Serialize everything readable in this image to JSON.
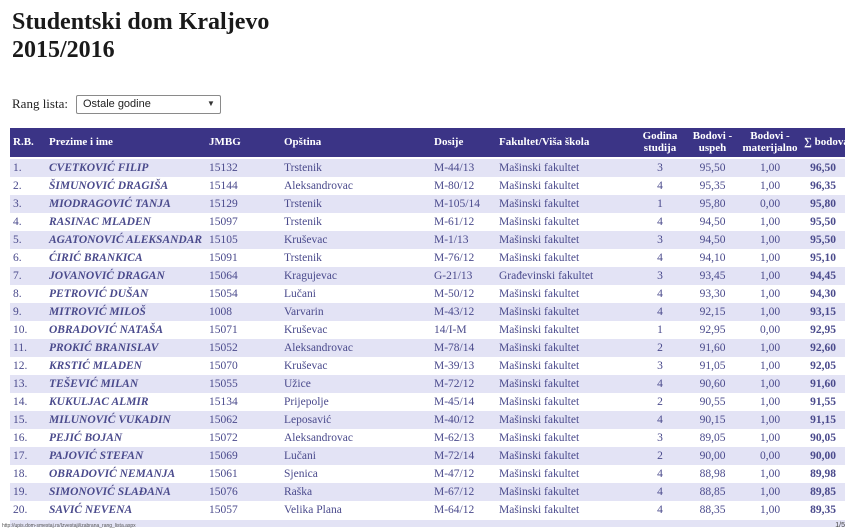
{
  "page": {
    "title": "Studentski dom Kraljevo",
    "subtitle": "2015/2016"
  },
  "filter": {
    "label": "Rang lista:",
    "selected_option": "Ostale godine",
    "dropdown_icon": "▼"
  },
  "table": {
    "columns": [
      "R.B.",
      "Prezime i ime",
      "JMBG",
      "Opština",
      "Dosije",
      "Fakultet/Viša škola",
      "Godina studija",
      "Bodovi - uspeh",
      "Bodovi - materijalno",
      "∑ bodova"
    ],
    "rows": [
      {
        "rb": "1.",
        "name": "CVETKOVIĆ FILIP",
        "jmbg": "15132",
        "opstina": "Trstenik",
        "dosije": "M-44/13",
        "fakultet": "Mašinski fakultet",
        "godina": "3",
        "uspeh": "95,50",
        "materijalno": "1,00",
        "suma": "96,50"
      },
      {
        "rb": "2.",
        "name": "ŠIMUNOVIĆ DRAGIŠA",
        "jmbg": "15144",
        "opstina": "Aleksandrovac",
        "dosije": "M-80/12",
        "fakultet": "Mašinski fakultet",
        "godina": "4",
        "uspeh": "95,35",
        "materijalno": "1,00",
        "suma": "96,35"
      },
      {
        "rb": "3.",
        "name": "MIODRAGOVIĆ TANJA",
        "jmbg": "15129",
        "opstina": "Trstenik",
        "dosije": "M-105/14",
        "fakultet": "Mašinski fakultet",
        "godina": "1",
        "uspeh": "95,80",
        "materijalno": "0,00",
        "suma": "95,80"
      },
      {
        "rb": "4.",
        "name": "RASINAC MLADEN",
        "jmbg": "15097",
        "opstina": "Trstenik",
        "dosije": "M-61/12",
        "fakultet": "Mašinski fakultet",
        "godina": "4",
        "uspeh": "94,50",
        "materijalno": "1,00",
        "suma": "95,50"
      },
      {
        "rb": "5.",
        "name": "AGATONOVIĆ ALEKSANDAR",
        "jmbg": "15105",
        "opstina": "Kruševac",
        "dosije": "M-1/13",
        "fakultet": "Mašinski fakultet",
        "godina": "3",
        "uspeh": "94,50",
        "materijalno": "1,00",
        "suma": "95,50"
      },
      {
        "rb": "6.",
        "name": "ĆIRIĆ BRANKICA",
        "jmbg": "15091",
        "opstina": "Trstenik",
        "dosije": "M-76/12",
        "fakultet": "Mašinski fakultet",
        "godina": "4",
        "uspeh": "94,10",
        "materijalno": "1,00",
        "suma": "95,10"
      },
      {
        "rb": "7.",
        "name": "JOVANOVIĆ DRAGAN",
        "jmbg": "15064",
        "opstina": "Kragujevac",
        "dosije": "G-21/13",
        "fakultet": "Građevinski fakultet",
        "godina": "3",
        "uspeh": "93,45",
        "materijalno": "1,00",
        "suma": "94,45"
      },
      {
        "rb": "8.",
        "name": "PETROVIĆ DUŠAN",
        "jmbg": "15054",
        "opstina": "Lučani",
        "dosije": "M-50/12",
        "fakultet": "Mašinski fakultet",
        "godina": "4",
        "uspeh": "93,30",
        "materijalno": "1,00",
        "suma": "94,30"
      },
      {
        "rb": "9.",
        "name": "MITROVIĆ MILOŠ",
        "jmbg": "1008",
        "opstina": "Varvarin",
        "dosije": "M-43/12",
        "fakultet": "Mašinski fakultet",
        "godina": "4",
        "uspeh": "92,15",
        "materijalno": "1,00",
        "suma": "93,15"
      },
      {
        "rb": "10.",
        "name": "OBRADOVIĆ NATAŠA",
        "jmbg": "15071",
        "opstina": "Kruševac",
        "dosije": "14/I-M",
        "fakultet": "Mašinski fakultet",
        "godina": "1",
        "uspeh": "92,95",
        "materijalno": "0,00",
        "suma": "92,95"
      },
      {
        "rb": "11.",
        "name": "PROKIĆ BRANISLAV",
        "jmbg": "15052",
        "opstina": "Aleksandrovac",
        "dosije": "M-78/14",
        "fakultet": "Mašinski fakultet",
        "godina": "2",
        "uspeh": "91,60",
        "materijalno": "1,00",
        "suma": "92,60"
      },
      {
        "rb": "12.",
        "name": "KRSTIĆ MLADEN",
        "jmbg": "15070",
        "opstina": "Kruševac",
        "dosije": "M-39/13",
        "fakultet": "Mašinski fakultet",
        "godina": "3",
        "uspeh": "91,05",
        "materijalno": "1,00",
        "suma": "92,05"
      },
      {
        "rb": "13.",
        "name": "TEŠEVIĆ MILAN",
        "jmbg": "15055",
        "opstina": "Užice",
        "dosije": "M-72/12",
        "fakultet": "Mašinski fakultet",
        "godina": "4",
        "uspeh": "90,60",
        "materijalno": "1,00",
        "suma": "91,60"
      },
      {
        "rb": "14.",
        "name": "KUKULJAC ALMIR",
        "jmbg": "15134",
        "opstina": "Prijepolje",
        "dosije": "M-45/14",
        "fakultet": "Mašinski fakultet",
        "godina": "2",
        "uspeh": "90,55",
        "materijalno": "1,00",
        "suma": "91,55"
      },
      {
        "rb": "15.",
        "name": "MILUNOVIĆ VUKADIN",
        "jmbg": "15062",
        "opstina": "Leposavić",
        "dosije": "M-40/12",
        "fakultet": "Mašinski fakultet",
        "godina": "4",
        "uspeh": "90,15",
        "materijalno": "1,00",
        "suma": "91,15"
      },
      {
        "rb": "16.",
        "name": "PEJIĆ BOJAN",
        "jmbg": "15072",
        "opstina": "Aleksandrovac",
        "dosije": "M-62/13",
        "fakultet": "Mašinski fakultet",
        "godina": "3",
        "uspeh": "89,05",
        "materijalno": "1,00",
        "suma": "90,05"
      },
      {
        "rb": "17.",
        "name": "PAJOVIĆ STEFAN",
        "jmbg": "15069",
        "opstina": "Lučani",
        "dosije": "M-72/14",
        "fakultet": "Mašinski fakultet",
        "godina": "2",
        "uspeh": "90,00",
        "materijalno": "0,00",
        "suma": "90,00"
      },
      {
        "rb": "18.",
        "name": "OBRADOVIĆ NEMANJA",
        "jmbg": "15061",
        "opstina": "Sjenica",
        "dosije": "M-47/12",
        "fakultet": "Mašinski fakultet",
        "godina": "4",
        "uspeh": "88,98",
        "materijalno": "1,00",
        "suma": "89,98"
      },
      {
        "rb": "19.",
        "name": "SIMONOVIĆ SLAĐANA",
        "jmbg": "15076",
        "opstina": "Raška",
        "dosije": "M-67/12",
        "fakultet": "Mašinski fakultet",
        "godina": "4",
        "uspeh": "88,85",
        "materijalno": "1,00",
        "suma": "89,85"
      },
      {
        "rb": "20.",
        "name": "SAVIĆ NEVENA",
        "jmbg": "15057",
        "opstina": "Velika Plana",
        "dosije": "M-64/12",
        "fakultet": "Mašinski fakultet",
        "godina": "4",
        "uspeh": "88,35",
        "materijalno": "1,00",
        "suma": "89,35"
      }
    ]
  },
  "footer": {
    "url": "http://upis.dom-smestaj.rs/Izvestaji/izabrana_rang_lista.aspx",
    "page_indicator": "1/5"
  },
  "colors": {
    "header_bg": "#3b3486",
    "row_alt_bg": "#e3e3f5",
    "name_green": "#1e7d1e",
    "sum_red": "#9c2a2a",
    "cell_text": "#4a4a8c"
  }
}
